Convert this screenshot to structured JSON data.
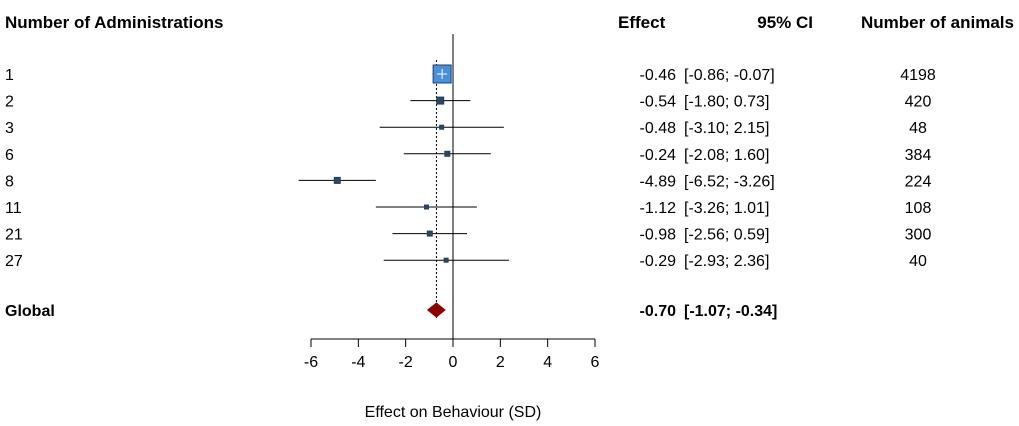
{
  "headers": {
    "group": "Number of Administrations",
    "effect": "Effect",
    "ci": "95% CI",
    "n": "Number of animals"
  },
  "chart_data": {
    "type": "forest",
    "xlabel": "Effect on Behaviour (SD)",
    "xlim": [
      -6,
      6
    ],
    "xticks": [
      "-6",
      "-4",
      "-2",
      "0",
      "2",
      "4",
      "6"
    ],
    "reference_line": 0,
    "pooled_line": -0.7,
    "rows": [
      {
        "label": "1",
        "effect": -0.46,
        "lower": -0.86,
        "upper": -0.07,
        "effect_text": "-0.46",
        "ci_text": "[-0.86; -0.07]",
        "n": "4198",
        "weight": 1.0
      },
      {
        "label": "2",
        "effect": -0.54,
        "lower": -1.8,
        "upper": 0.73,
        "effect_text": "-0.54",
        "ci_text": "[-1.80;  0.73]",
        "n": "420",
        "weight": 0.3
      },
      {
        "label": "3",
        "effect": -0.48,
        "lower": -3.1,
        "upper": 2.15,
        "effect_text": "-0.48",
        "ci_text": "[-3.10;  2.15]",
        "n": "48",
        "weight": 0.1
      },
      {
        "label": "6",
        "effect": -0.24,
        "lower": -2.08,
        "upper": 1.6,
        "effect_text": "-0.24",
        "ci_text": "[-2.08;  1.60]",
        "n": "384",
        "weight": 0.22
      },
      {
        "label": "8",
        "effect": -4.89,
        "lower": -6.52,
        "upper": -3.26,
        "effect_text": "-4.89",
        "ci_text": "[-6.52; -3.26]",
        "n": "224",
        "weight": 0.28
      },
      {
        "label": "11",
        "effect": -1.12,
        "lower": -3.26,
        "upper": 1.01,
        "effect_text": "-1.12",
        "ci_text": "[-3.26;  1.01]",
        "n": "108",
        "weight": 0.12
      },
      {
        "label": "21",
        "effect": -0.98,
        "lower": -2.56,
        "upper": 0.59,
        "effect_text": "-0.98",
        "ci_text": "[-2.56;  0.59]",
        "n": "300",
        "weight": 0.24
      },
      {
        "label": "27",
        "effect": -0.29,
        "lower": -2.93,
        "upper": 2.36,
        "effect_text": "-0.29",
        "ci_text": "[-2.93;  2.36]",
        "n": "40",
        "weight": 0.11
      }
    ],
    "global": {
      "label": "Global",
      "effect": -0.7,
      "lower": -1.07,
      "upper": -0.34,
      "effect_text": "-0.70",
      "ci_text": "[-1.07; -0.34]"
    },
    "colors": {
      "box": "#4a90d9",
      "box_border": "#1f3f66",
      "small_box": "#33475c",
      "diamond": "#8b0000",
      "line": "#000000"
    }
  }
}
